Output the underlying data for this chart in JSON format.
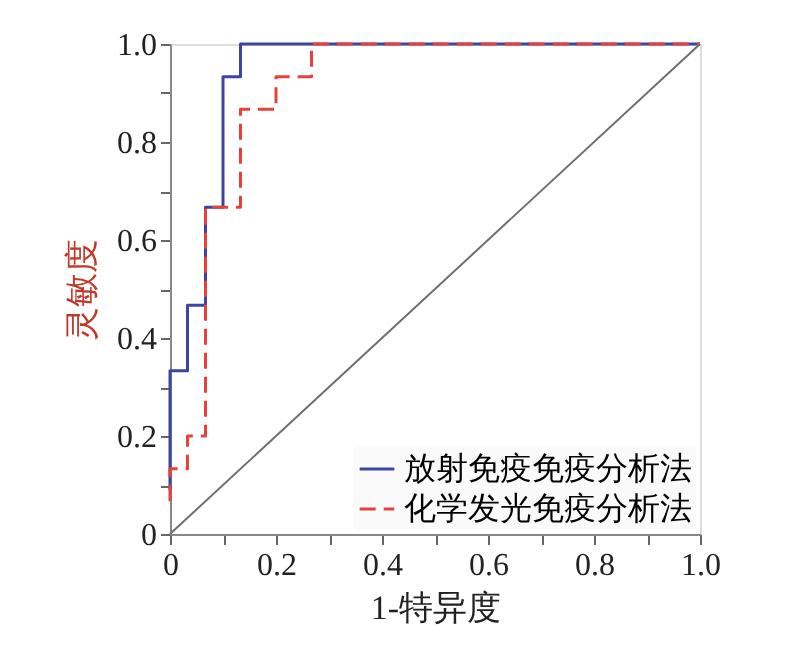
{
  "chart_data": {
    "type": "step",
    "xlabel": "1-特异度",
    "ylabel": "灵敏度",
    "xlim": [
      0,
      1
    ],
    "ylim": [
      0,
      1
    ],
    "xticks": [
      0,
      {
        "value": 0.1,
        "label": null
      },
      0.2,
      {
        "value": 0.3,
        "label": null
      },
      0.4,
      {
        "value": 0.5,
        "label": null
      },
      0.6,
      {
        "value": 0.7,
        "label": null
      },
      0.8,
      {
        "value": 0.9,
        "label": null
      },
      {
        "value": 1,
        "label": "1.0"
      }
    ],
    "yticks": [
      0,
      {
        "value": 0.1,
        "label": null
      },
      0.2,
      {
        "value": 0.3,
        "label": null
      },
      0.4,
      {
        "value": 0.5,
        "label": null
      },
      0.6,
      {
        "value": 0.7,
        "label": null
      },
      0.8,
      {
        "value": 0.9,
        "label": null
      },
      {
        "value": 1,
        "label": "1.0"
      }
    ],
    "grid": false,
    "legend": "bottom right",
    "marker": "none",
    "series": [
      {
        "name": "放射免疫免疫分析法",
        "color": "#3c46a0",
        "line_style": "solid",
        "x": [
          0,
          0,
          0.033,
          0.067,
          0.1,
          0.133,
          1.0
        ],
        "values": [
          0.09,
          0.333,
          0.467,
          0.667,
          0.933,
          1.0,
          1.0
        ]
      },
      {
        "name": "化学发光免疫分析法",
        "color": "#e8413c",
        "line_style": "dashed",
        "x": [
          0,
          0,
          0.033,
          0.067,
          0.133,
          0.2,
          0.267,
          1.0
        ],
        "values": [
          0.067,
          0.133,
          0.2,
          0.667,
          0.867,
          0.933,
          1.0,
          1.0
        ]
      },
      {
        "type": "line",
        "color": "#6e6e6e",
        "line_style": "solid",
        "x": [
          0,
          1
        ],
        "values": [
          0,
          1
        ]
      }
    ]
  }
}
